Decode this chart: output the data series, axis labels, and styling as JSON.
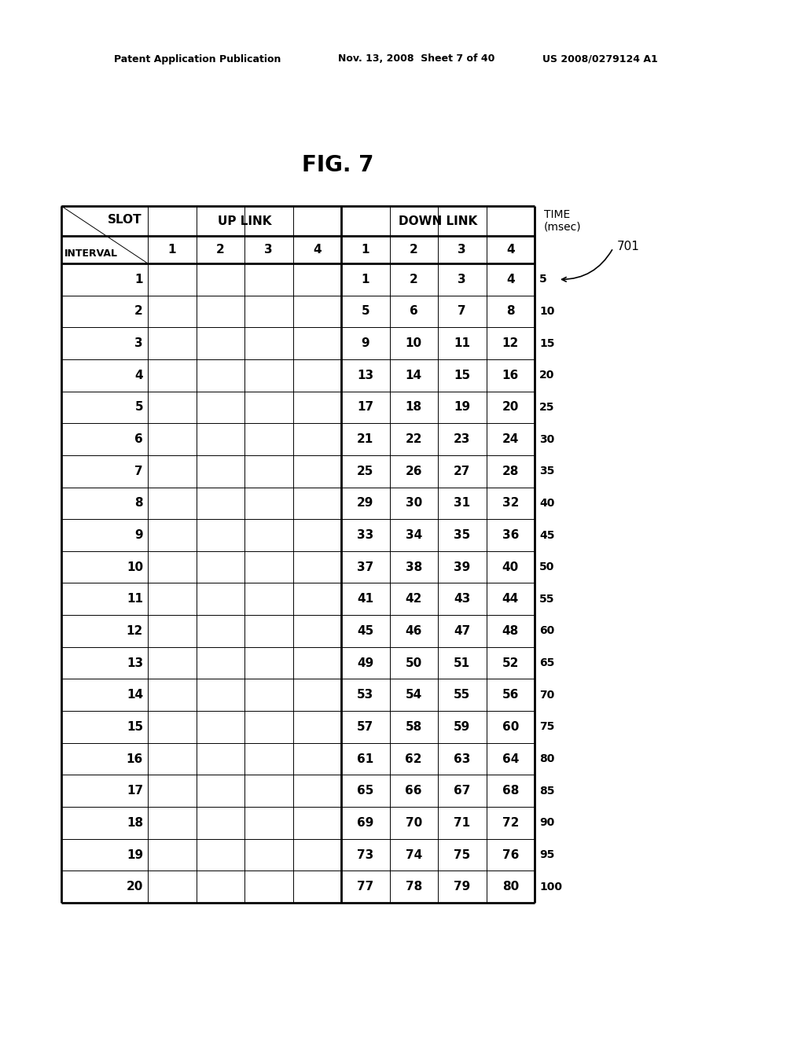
{
  "title": "FIG. 7",
  "header_line1": "Patent Application Publication",
  "header_line2": "Nov. 13, 2008  Sheet 7 of 40",
  "header_line3": "US 2008/0279124 A1",
  "uplink_label": "UP LINK",
  "downlink_label": "DOWN LINK",
  "time_label": "TIME\n(msec)",
  "annotation_label": "701",
  "num_intervals": 20,
  "time_values": [
    5,
    10,
    15,
    20,
    25,
    30,
    35,
    40,
    45,
    50,
    55,
    60,
    65,
    70,
    75,
    80,
    85,
    90,
    95,
    100
  ],
  "downlink_data": [
    [
      1,
      2,
      3,
      4
    ],
    [
      5,
      6,
      7,
      8
    ],
    [
      9,
      10,
      11,
      12
    ],
    [
      13,
      14,
      15,
      16
    ],
    [
      17,
      18,
      19,
      20
    ],
    [
      21,
      22,
      23,
      24
    ],
    [
      25,
      26,
      27,
      28
    ],
    [
      29,
      30,
      31,
      32
    ],
    [
      33,
      34,
      35,
      36
    ],
    [
      37,
      38,
      39,
      40
    ],
    [
      41,
      42,
      43,
      44
    ],
    [
      45,
      46,
      47,
      48
    ],
    [
      49,
      50,
      51,
      52
    ],
    [
      53,
      54,
      55,
      56
    ],
    [
      57,
      58,
      59,
      60
    ],
    [
      61,
      62,
      63,
      64
    ],
    [
      65,
      66,
      67,
      68
    ],
    [
      69,
      70,
      71,
      72
    ],
    [
      73,
      74,
      75,
      76
    ],
    [
      77,
      78,
      79,
      80
    ]
  ],
  "bg_color": "#ffffff",
  "thick_lw": 2.0,
  "thin_lw": 0.7,
  "fs_patent": 9,
  "fs_title": 20,
  "fs_header": 11,
  "fs_subheader": 11,
  "fs_cell": 11,
  "fs_time": 10,
  "fs_annot": 11
}
